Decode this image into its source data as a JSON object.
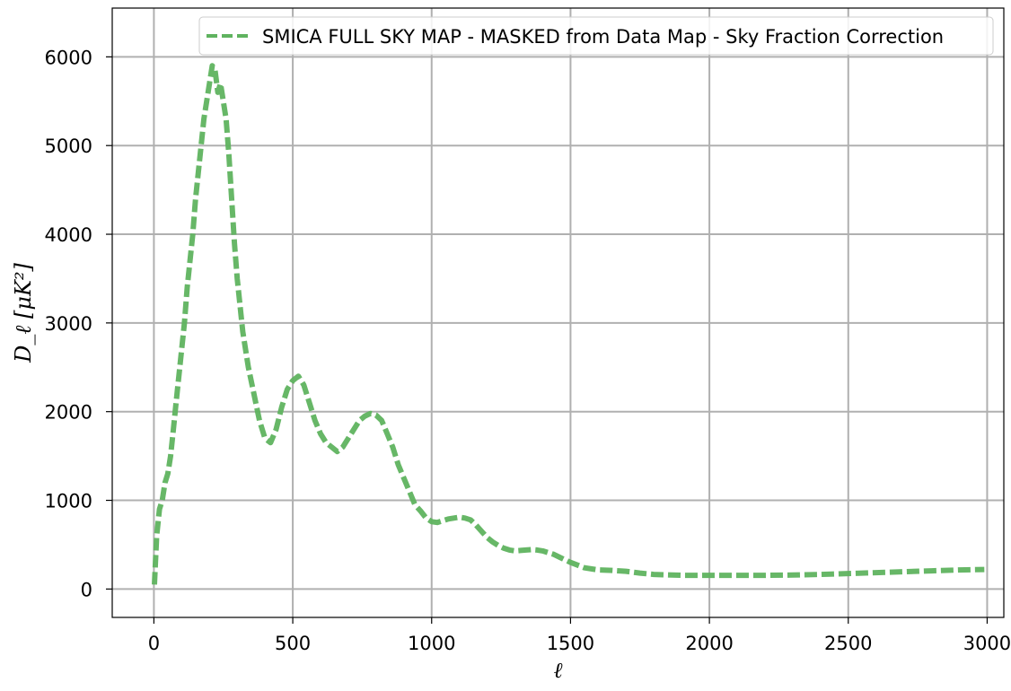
{
  "chart_data": {
    "type": "line",
    "title": "",
    "xlabel": "ℓ",
    "ylabel": "D_ℓ [μK²]",
    "xlim": [
      -150,
      3060
    ],
    "ylim": [
      -320,
      6550
    ],
    "xticks": [
      0,
      500,
      1000,
      1500,
      2000,
      2500,
      3000
    ],
    "yticks": [
      0,
      1000,
      2000,
      3000,
      4000,
      5000,
      6000
    ],
    "grid": true,
    "legend_position": "top-right",
    "series": [
      {
        "name": "SMICA FULL SKY MAP - MASKED from Data Map - Sky Fraction Correction",
        "color": "#5fb35f",
        "line_style": "dashed",
        "x": [
          2,
          10,
          20,
          30,
          40,
          50,
          60,
          70,
          80,
          90,
          100,
          110,
          120,
          130,
          140,
          150,
          160,
          170,
          180,
          190,
          200,
          210,
          220,
          230,
          240,
          250,
          260,
          270,
          280,
          290,
          300,
          310,
          320,
          340,
          360,
          380,
          400,
          420,
          440,
          460,
          480,
          500,
          520,
          540,
          560,
          580,
          600,
          620,
          640,
          660,
          680,
          700,
          720,
          740,
          760,
          780,
          800,
          820,
          840,
          860,
          880,
          900,
          920,
          940,
          960,
          980,
          1000,
          1020,
          1040,
          1060,
          1080,
          1100,
          1120,
          1140,
          1160,
          1180,
          1200,
          1220,
          1240,
          1260,
          1280,
          1300,
          1320,
          1340,
          1360,
          1380,
          1400,
          1420,
          1440,
          1460,
          1480,
          1500,
          1550,
          1600,
          1650,
          1700,
          1750,
          1800,
          1850,
          1900,
          1950,
          2000,
          2100,
          2200,
          2300,
          2400,
          2500,
          2600,
          2700,
          2800,
          2900,
          2990
        ],
        "y": [
          50,
          600,
          900,
          1000,
          1200,
          1300,
          1500,
          1800,
          2100,
          2400,
          2700,
          3000,
          3400,
          3700,
          4000,
          4400,
          4700,
          5000,
          5300,
          5500,
          5700,
          5900,
          5850,
          5600,
          5700,
          5500,
          5300,
          4900,
          4400,
          3900,
          3500,
          3200,
          2900,
          2500,
          2200,
          1900,
          1700,
          1650,
          1800,
          2050,
          2250,
          2350,
          2400,
          2300,
          2100,
          1900,
          1750,
          1650,
          1600,
          1550,
          1600,
          1700,
          1800,
          1900,
          1950,
          1980,
          1960,
          1900,
          1750,
          1600,
          1400,
          1250,
          1100,
          950,
          880,
          800,
          760,
          750,
          770,
          790,
          800,
          810,
          800,
          780,
          720,
          650,
          580,
          530,
          490,
          460,
          440,
          430,
          435,
          440,
          445,
          440,
          430,
          410,
          390,
          360,
          330,
          300,
          240,
          215,
          210,
          200,
          180,
          165,
          160,
          155,
          155,
          155,
          155,
          155,
          158,
          165,
          175,
          185,
          195,
          205,
          215,
          220
        ]
      }
    ]
  }
}
